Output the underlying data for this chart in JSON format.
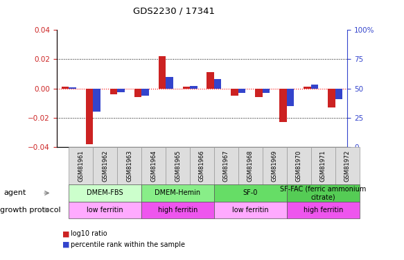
{
  "title": "GDS2230 / 17341",
  "samples": [
    "GSM81961",
    "GSM81962",
    "GSM81963",
    "GSM81964",
    "GSM81965",
    "GSM81966",
    "GSM81967",
    "GSM81968",
    "GSM81969",
    "GSM81970",
    "GSM81971",
    "GSM81972"
  ],
  "log10_ratio": [
    0.001,
    -0.038,
    -0.004,
    -0.006,
    0.022,
    0.001,
    0.011,
    -0.005,
    -0.006,
    -0.023,
    0.001,
    -0.013
  ],
  "percentile_rank": [
    51,
    30,
    47,
    44,
    60,
    52,
    58,
    46,
    46,
    35,
    53,
    41
  ],
  "ylim_left": [
    -0.04,
    0.04
  ],
  "ylim_right": [
    0,
    100
  ],
  "yticks_left": [
    -0.04,
    -0.02,
    0.0,
    0.02,
    0.04
  ],
  "yticks_right": [
    0,
    25,
    50,
    75,
    100
  ],
  "bar_color_red": "#cc2222",
  "bar_color_blue": "#3344cc",
  "bar_width": 0.3,
  "agent_groups": [
    {
      "label": "DMEM-FBS",
      "start": 0,
      "end": 3,
      "color": "#ccffcc"
    },
    {
      "label": "DMEM-Hemin",
      "start": 3,
      "end": 6,
      "color": "#88ee88"
    },
    {
      "label": "SF-0",
      "start": 6,
      "end": 9,
      "color": "#66dd66"
    },
    {
      "label": "SF-FAC (ferric ammonium\ncitrate)",
      "start": 9,
      "end": 12,
      "color": "#55cc55"
    }
  ],
  "protocol_groups": [
    {
      "label": "low ferritin",
      "start": 0,
      "end": 3,
      "color": "#ffaaff"
    },
    {
      "label": "high ferritin",
      "start": 3,
      "end": 6,
      "color": "#ee55ee"
    },
    {
      "label": "low ferritin",
      "start": 6,
      "end": 9,
      "color": "#ffaaff"
    },
    {
      "label": "high ferritin",
      "start": 9,
      "end": 12,
      "color": "#ee55ee"
    }
  ],
  "legend_red_label": "log10 ratio",
  "legend_blue_label": "percentile rank within the sample",
  "agent_label": "agent",
  "protocol_label": "growth protocol"
}
